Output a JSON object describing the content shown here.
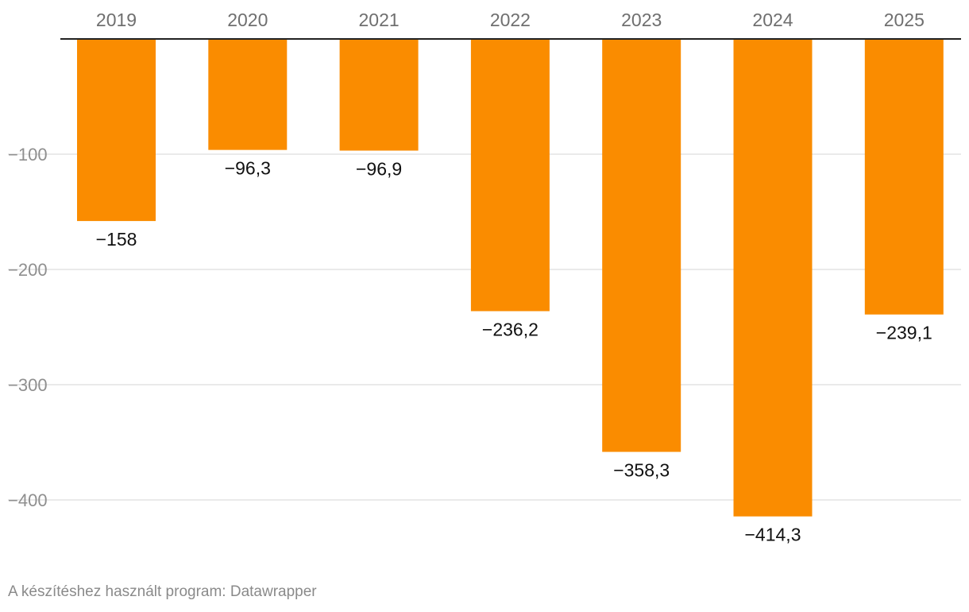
{
  "chart_data": {
    "type": "bar",
    "orientation": "vertical",
    "categories": [
      "2019",
      "2020",
      "2021",
      "2022",
      "2023",
      "2024",
      "2025"
    ],
    "values": [
      -158,
      -96.3,
      -96.9,
      -236.2,
      -358.3,
      -414.3,
      -239.1
    ],
    "value_labels": [
      "−158",
      "−96,3",
      "−96,9",
      "−236,2",
      "−358,3",
      "−414,3",
      "−239,1"
    ],
    "y_ticks": [
      -100,
      -200,
      -300,
      -400
    ],
    "y_tick_labels": [
      "−100",
      "−200",
      "−300",
      "−400"
    ],
    "ylim": [
      -414.3,
      0
    ],
    "category_axis_position": "top",
    "grid": true,
    "bar_color": "#fa8c00",
    "title": "",
    "xlabel": "",
    "ylabel": ""
  },
  "footer": {
    "credit": "A készítéshez használt program: Datawrapper"
  }
}
